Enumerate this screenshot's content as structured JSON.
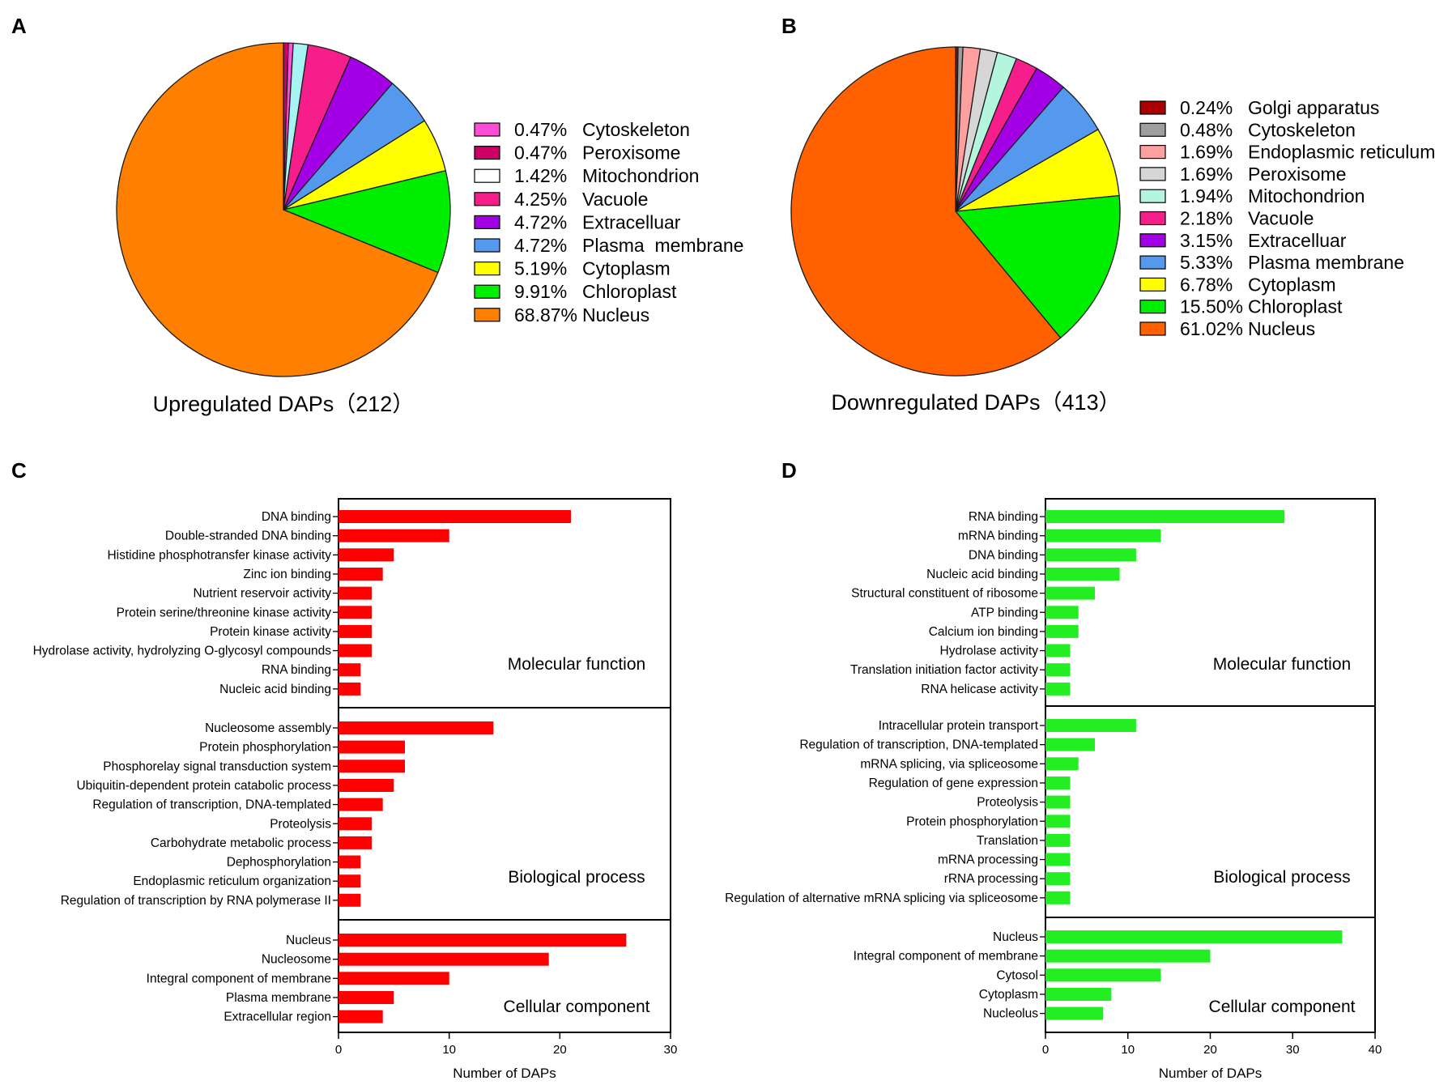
{
  "chart_data": [
    {
      "panel": "A",
      "type": "pie",
      "title": "Upregulated DAPs（212）",
      "legend_position": "right",
      "slices": [
        {
          "label": "Cytoskeleton",
          "pct": "0.47%",
          "value": 0.47,
          "color": "#ff4dd8"
        },
        {
          "label": "Peroxisome",
          "pct": "0.47%",
          "value": 0.47,
          "color": "#cc0066"
        },
        {
          "label": "Mitochondrion",
          "pct": "1.42%",
          "value": 1.42,
          "color": "#ffffff"
        },
        {
          "label": "Vacuole",
          "pct": "4.25%",
          "value": 4.25,
          "color": "#f51e8a"
        },
        {
          "label": "Extracelluar",
          "pct": "4.72%",
          "value": 4.72,
          "color": "#a300e6"
        },
        {
          "label": "Plasma  membrane",
          "pct": "4.72%",
          "value": 4.72,
          "color": "#5599ee"
        },
        {
          "label": "Cytoplasm",
          "pct": "5.19%",
          "value": 5.19,
          "color": "#ffff00"
        },
        {
          "label": "Chloroplast",
          "pct": "9.91%",
          "value": 9.91,
          "color": "#00ee00"
        },
        {
          "label": "Nucleus",
          "pct": "68.87%",
          "value": 68.87,
          "color": "#ff8000"
        }
      ],
      "draw_order": [
        "Peroxisome",
        "Cytoskeleton",
        "Mitochondrion",
        "Vacuole",
        "Extracelluar",
        "Plasma  membrane",
        "Cytoplasm",
        "Chloroplast",
        "Nucleus"
      ],
      "draw_colors": {
        "Mitochondrion": "#a6f4f4"
      }
    },
    {
      "panel": "B",
      "type": "pie",
      "title": "Downregulated DAPs（413）",
      "legend_position": "right",
      "slices": [
        {
          "label": "Golgi apparatus",
          "pct": "0.24%",
          "value": 0.24,
          "color": "#aa0000"
        },
        {
          "label": "Cytoskeleton",
          "pct": "0.48%",
          "value": 0.48,
          "color": "#9e9e9e"
        },
        {
          "label": "Endoplasmic reticulum",
          "pct": "1.69%",
          "value": 1.69,
          "color": "#ffa0a0"
        },
        {
          "label": "Peroxisome",
          "pct": "1.69%",
          "value": 1.69,
          "color": "#d6d6d6"
        },
        {
          "label": "Mitochondrion",
          "pct": "1.94%",
          "value": 1.94,
          "color": "#b4f5de"
        },
        {
          "label": "Vacuole",
          "pct": "2.18%",
          "value": 2.18,
          "color": "#f51e8a"
        },
        {
          "label": "Extracelluar",
          "pct": "3.15%",
          "value": 3.15,
          "color": "#a300e6"
        },
        {
          "label": "Plasma membrane",
          "pct": "5.33%",
          "value": 5.33,
          "color": "#5599ee"
        },
        {
          "label": "Cytoplasm",
          "pct": "6.78%",
          "value": 6.78,
          "color": "#ffff00"
        },
        {
          "label": "Chloroplast",
          "pct": "15.50%",
          "value": 15.5,
          "color": "#00ee00"
        },
        {
          "label": "Nucleus",
          "pct": "61.02%",
          "value": 61.02,
          "color": "#ff6000"
        }
      ]
    },
    {
      "panel": "C",
      "type": "bar",
      "orientation": "horizontal",
      "color": "#ff0000",
      "xlabel": "Number of DAPs",
      "xlim": [
        0,
        30
      ],
      "xticks": [
        "0",
        "10",
        "20",
        "30"
      ],
      "groups": [
        {
          "name": "Molecular function",
          "categories": [
            "DNA binding",
            "Double-stranded DNA binding",
            "Histidine phosphotransfer kinase activity",
            "Zinc ion binding",
            "Nutrient reservoir activity",
            "Protein serine/threonine kinase activity",
            "Protein kinase activity",
            "Hydrolase activity, hydrolyzing O-glycosyl compounds",
            "RNA binding",
            "Nucleic acid binding"
          ],
          "values": [
            21,
            10,
            5,
            4,
            3,
            3,
            3,
            3,
            2,
            2
          ]
        },
        {
          "name": "Biological process",
          "categories": [
            "Nucleosome assembly",
            "Protein phosphorylation",
            "Phosphorelay signal transduction system",
            "Ubiquitin-dependent protein catabolic process",
            "Regulation of transcription, DNA-templated",
            "Proteolysis",
            "Carbohydrate metabolic process",
            "Dephosphorylation",
            "Endoplasmic reticulum organization",
            "Regulation of transcription by RNA polymerase II"
          ],
          "values": [
            14,
            6,
            6,
            5,
            4,
            3,
            3,
            2,
            2,
            2
          ]
        },
        {
          "name": "Cellular component",
          "categories": [
            "Nucleus",
            "Nucleosome",
            "Integral component of membrane",
            "Plasma membrane",
            "Extracellular region"
          ],
          "values": [
            26,
            19,
            10,
            5,
            4
          ]
        }
      ]
    },
    {
      "panel": "D",
      "type": "bar",
      "orientation": "horizontal",
      "color": "#22ee22",
      "xlabel": "Number of DAPs",
      "xlim": [
        0,
        40
      ],
      "xticks": [
        "0",
        "10",
        "20",
        "30",
        "40"
      ],
      "groups": [
        {
          "name": "Molecular function",
          "categories": [
            "RNA binding",
            "mRNA binding",
            "DNA binding",
            "Nucleic acid binding",
            "Structural constituent of ribosome",
            "ATP binding",
            "Calcium ion binding",
            "Hydrolase activity",
            "Translation initiation factor activity",
            "RNA helicase activity"
          ],
          "values": [
            29,
            14,
            11,
            9,
            6,
            4,
            4,
            3,
            3,
            3
          ]
        },
        {
          "name": "Biological process",
          "categories": [
            "Intracellular protein transport",
            "Regulation of transcription, DNA-templated",
            "mRNA splicing, via spliceosome",
            "Regulation of gene expression",
            "Proteolysis",
            "Protein phosphorylation",
            "Translation",
            "mRNA processing",
            "rRNA processing",
            "Regulation of alternative mRNA splicing via spliceosome"
          ],
          "values": [
            11,
            6,
            4,
            3,
            3,
            3,
            3,
            3,
            3,
            3
          ]
        },
        {
          "name": "Cellular component",
          "categories": [
            "Nucleus",
            "Integral component of membrane",
            "Cytosol",
            "Cytoplasm",
            "Nucleolus"
          ],
          "values": [
            36,
            20,
            14,
            8,
            7
          ]
        }
      ]
    }
  ]
}
